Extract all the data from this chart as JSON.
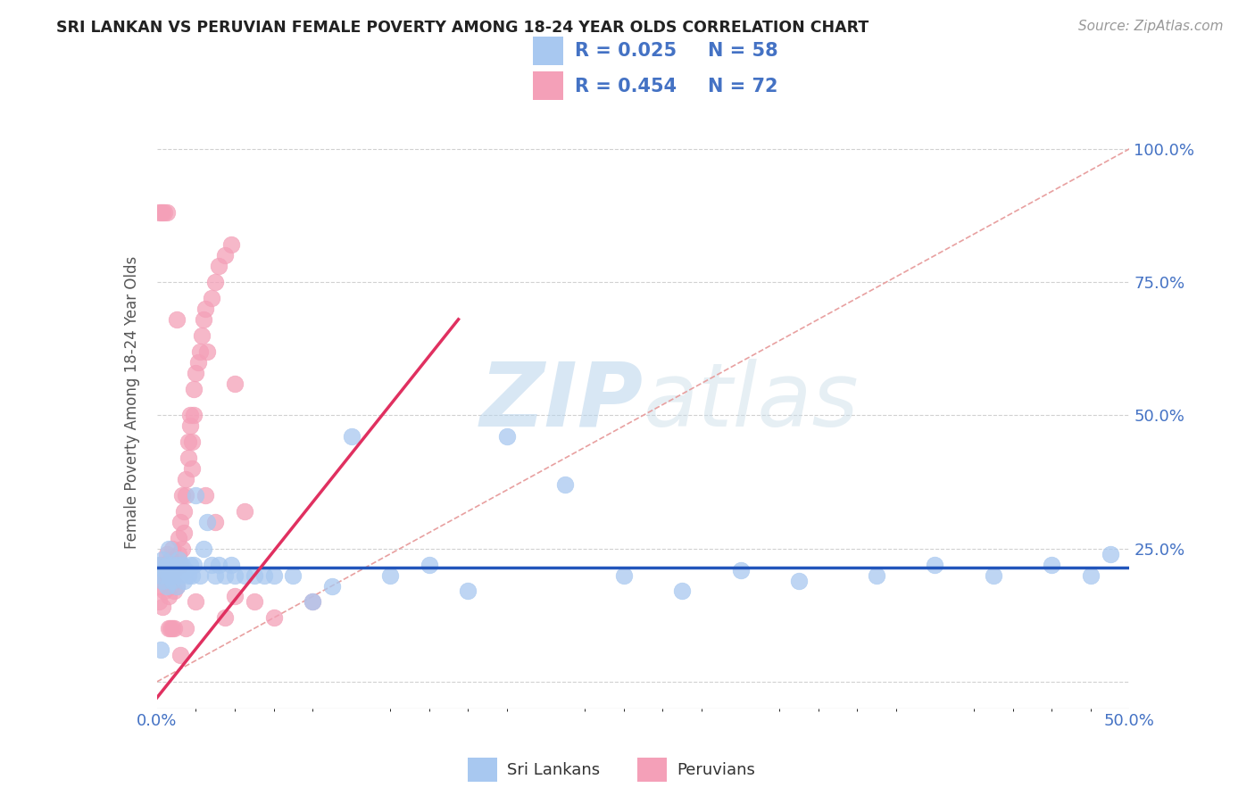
{
  "title": "SRI LANKAN VS PERUVIAN FEMALE POVERTY AMONG 18-24 YEAR OLDS CORRELATION CHART",
  "source": "Source: ZipAtlas.com",
  "ylabel": "Female Poverty Among 18-24 Year Olds",
  "xlim": [
    0.0,
    0.5
  ],
  "ylim": [
    -0.05,
    1.1
  ],
  "sri_lankan_color": "#a8c8f0",
  "peruvian_color": "#f4a0b8",
  "sri_lankan_line_color": "#2255bb",
  "peruvian_line_color": "#e03060",
  "diagonal_color": "#e8a0a0",
  "watermark_color": "#c8e0f4",
  "legend_R_sri": "R = 0.025",
  "legend_N_sri": "N = 58",
  "legend_R_peru": "R = 0.454",
  "legend_N_peru": "N = 72",
  "legend_label_sri": "Sri Lankans",
  "legend_label_peru": "Peruvians",
  "sri_lankans_x": [
    0.001,
    0.002,
    0.003,
    0.003,
    0.004,
    0.005,
    0.005,
    0.006,
    0.006,
    0.007,
    0.008,
    0.008,
    0.009,
    0.01,
    0.01,
    0.011,
    0.012,
    0.013,
    0.014,
    0.015,
    0.016,
    0.017,
    0.018,
    0.019,
    0.02,
    0.022,
    0.024,
    0.026,
    0.028,
    0.03,
    0.032,
    0.035,
    0.038,
    0.04,
    0.045,
    0.05,
    0.055,
    0.06,
    0.07,
    0.08,
    0.09,
    0.1,
    0.12,
    0.14,
    0.16,
    0.18,
    0.21,
    0.24,
    0.27,
    0.3,
    0.33,
    0.37,
    0.4,
    0.43,
    0.46,
    0.48,
    0.49,
    0.002
  ],
  "sri_lankans_y": [
    0.22,
    0.2,
    0.19,
    0.23,
    0.21,
    0.22,
    0.18,
    0.25,
    0.2,
    0.22,
    0.19,
    0.21,
    0.2,
    0.22,
    0.18,
    0.23,
    0.2,
    0.22,
    0.19,
    0.21,
    0.2,
    0.22,
    0.2,
    0.22,
    0.35,
    0.2,
    0.25,
    0.3,
    0.22,
    0.2,
    0.22,
    0.2,
    0.22,
    0.2,
    0.2,
    0.2,
    0.2,
    0.2,
    0.2,
    0.15,
    0.18,
    0.46,
    0.2,
    0.22,
    0.17,
    0.46,
    0.37,
    0.2,
    0.17,
    0.21,
    0.19,
    0.2,
    0.22,
    0.2,
    0.22,
    0.2,
    0.24,
    0.06
  ],
  "peruvians_x": [
    0.001,
    0.001,
    0.002,
    0.002,
    0.003,
    0.003,
    0.004,
    0.004,
    0.005,
    0.005,
    0.006,
    0.006,
    0.007,
    0.007,
    0.008,
    0.008,
    0.009,
    0.009,
    0.01,
    0.01,
    0.011,
    0.011,
    0.012,
    0.012,
    0.013,
    0.013,
    0.014,
    0.014,
    0.015,
    0.015,
    0.016,
    0.016,
    0.017,
    0.017,
    0.018,
    0.018,
    0.019,
    0.019,
    0.02,
    0.021,
    0.022,
    0.023,
    0.024,
    0.025,
    0.026,
    0.028,
    0.03,
    0.032,
    0.035,
    0.038,
    0.04,
    0.045,
    0.001,
    0.002,
    0.003,
    0.004,
    0.005,
    0.006,
    0.007,
    0.008,
    0.009,
    0.01,
    0.012,
    0.015,
    0.02,
    0.025,
    0.03,
    0.035,
    0.04,
    0.05,
    0.06,
    0.08
  ],
  "peruvians_y": [
    0.2,
    0.15,
    0.18,
    0.22,
    0.19,
    0.14,
    0.21,
    0.17,
    0.24,
    0.2,
    0.16,
    0.22,
    0.18,
    0.23,
    0.25,
    0.19,
    0.21,
    0.17,
    0.22,
    0.18,
    0.24,
    0.27,
    0.22,
    0.3,
    0.25,
    0.35,
    0.28,
    0.32,
    0.38,
    0.35,
    0.42,
    0.45,
    0.48,
    0.5,
    0.4,
    0.45,
    0.55,
    0.5,
    0.58,
    0.6,
    0.62,
    0.65,
    0.68,
    0.7,
    0.62,
    0.72,
    0.75,
    0.78,
    0.8,
    0.82,
    0.56,
    0.32,
    0.88,
    0.88,
    0.88,
    0.88,
    0.88,
    0.1,
    0.1,
    0.1,
    0.1,
    0.68,
    0.05,
    0.1,
    0.15,
    0.35,
    0.3,
    0.12,
    0.16,
    0.15,
    0.12,
    0.15
  ]
}
